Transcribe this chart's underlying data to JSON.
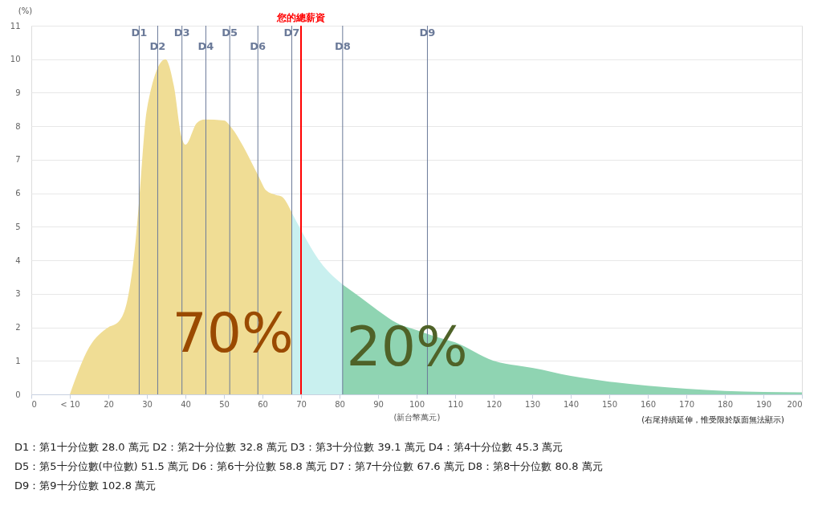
{
  "chart_data": {
    "type": "area",
    "xlabel": "(新台幣萬元)",
    "ylabel": "(%)",
    "xlim": [
      0,
      200
    ],
    "xticks": [
      0,
      {
        "value": 10,
        "label": "< 10"
      },
      20,
      30,
      40,
      50,
      60,
      70,
      80,
      90,
      100,
      110,
      120,
      130,
      140,
      150,
      160,
      170,
      180,
      190,
      200
    ],
    "ylim": [
      0,
      11
    ],
    "yticks": [
      0,
      1,
      2,
      3,
      4,
      5,
      6,
      7,
      8,
      9,
      10,
      11
    ],
    "grid": "y",
    "series": [
      {
        "color": "#f0dd95",
        "x": [
          10,
          15,
          20,
          22.5,
          25,
          27,
          28,
          30,
          34.8,
          37,
          39,
          40,
          43,
          45,
          50,
          52,
          55,
          58.8,
          61,
          63.5,
          65,
          67.6
        ],
        "values": [
          0,
          1.4,
          2.0,
          2.15,
          2.85,
          4.5,
          5.8,
          8.5,
          10.0,
          9.2,
          7.67,
          7.45,
          8.1,
          8.2,
          8.17,
          7.95,
          7.4,
          6.55,
          6.08,
          5.95,
          5.9,
          5.42
        ]
      },
      {
        "color": "#c9f0ef",
        "x": [
          67.6,
          70,
          75,
          80.8
        ],
        "values": [
          5.42,
          4.9,
          3.95,
          3.28
        ]
      },
      {
        "color": "#8fd4b2",
        "x": [
          80.8,
          85,
          90,
          95,
          100,
          105,
          110,
          120,
          126,
          130,
          140,
          150,
          160,
          170,
          180,
          190,
          200
        ],
        "values": [
          3.28,
          2.93,
          2.5,
          2.12,
          1.92,
          1.72,
          1.55,
          1.0,
          0.86,
          0.79,
          0.55,
          0.38,
          0.26,
          0.17,
          0.1,
          0.07,
          0.06
        ]
      }
    ],
    "ref_lines": [
      {
        "axis": "x",
        "value": 28.0,
        "label": "D1",
        "color": "#6b7a99"
      },
      {
        "axis": "x",
        "value": 32.8,
        "label": "D2",
        "color": "#6b7a99"
      },
      {
        "axis": "x",
        "value": 39.1,
        "label": "D3",
        "color": "#6b7a99"
      },
      {
        "axis": "x",
        "value": 45.3,
        "label": "D4",
        "color": "#6b7a99"
      },
      {
        "axis": "x",
        "value": 51.5,
        "label": "D5",
        "color": "#6b7a99"
      },
      {
        "axis": "x",
        "value": 58.8,
        "label": "D6",
        "color": "#6b7a99"
      },
      {
        "axis": "x",
        "value": 67.6,
        "label": "D7",
        "color": "#6b7a99"
      },
      {
        "axis": "x",
        "value": 80.8,
        "label": "D8",
        "color": "#6b7a99"
      },
      {
        "axis": "x",
        "value": 102.8,
        "label": "D9",
        "color": "#6b7a99"
      },
      {
        "axis": "x",
        "value": 70,
        "label": "您的總薪資",
        "color": "#ff0000"
      }
    ],
    "annotations": [
      "70%",
      "20%",
      "(右尾持續延伸，惟受限於版面無法顯示)",
      "D1：第1十分位數 28.0 萬元  D2：第2十分位數 32.8 萬元  D3：第3十分位數 39.1 萬元  D4：第4十分位數 45.3 萬元",
      "D5：第5十分位數(中位數) 51.5 萬元  D6：第6十分位數 58.8 萬元  D7：第7十分位數 67.6 萬元  D8：第8十分位數 80.8 萬元",
      "D9：第9十分位數 102.8 萬元"
    ]
  }
}
